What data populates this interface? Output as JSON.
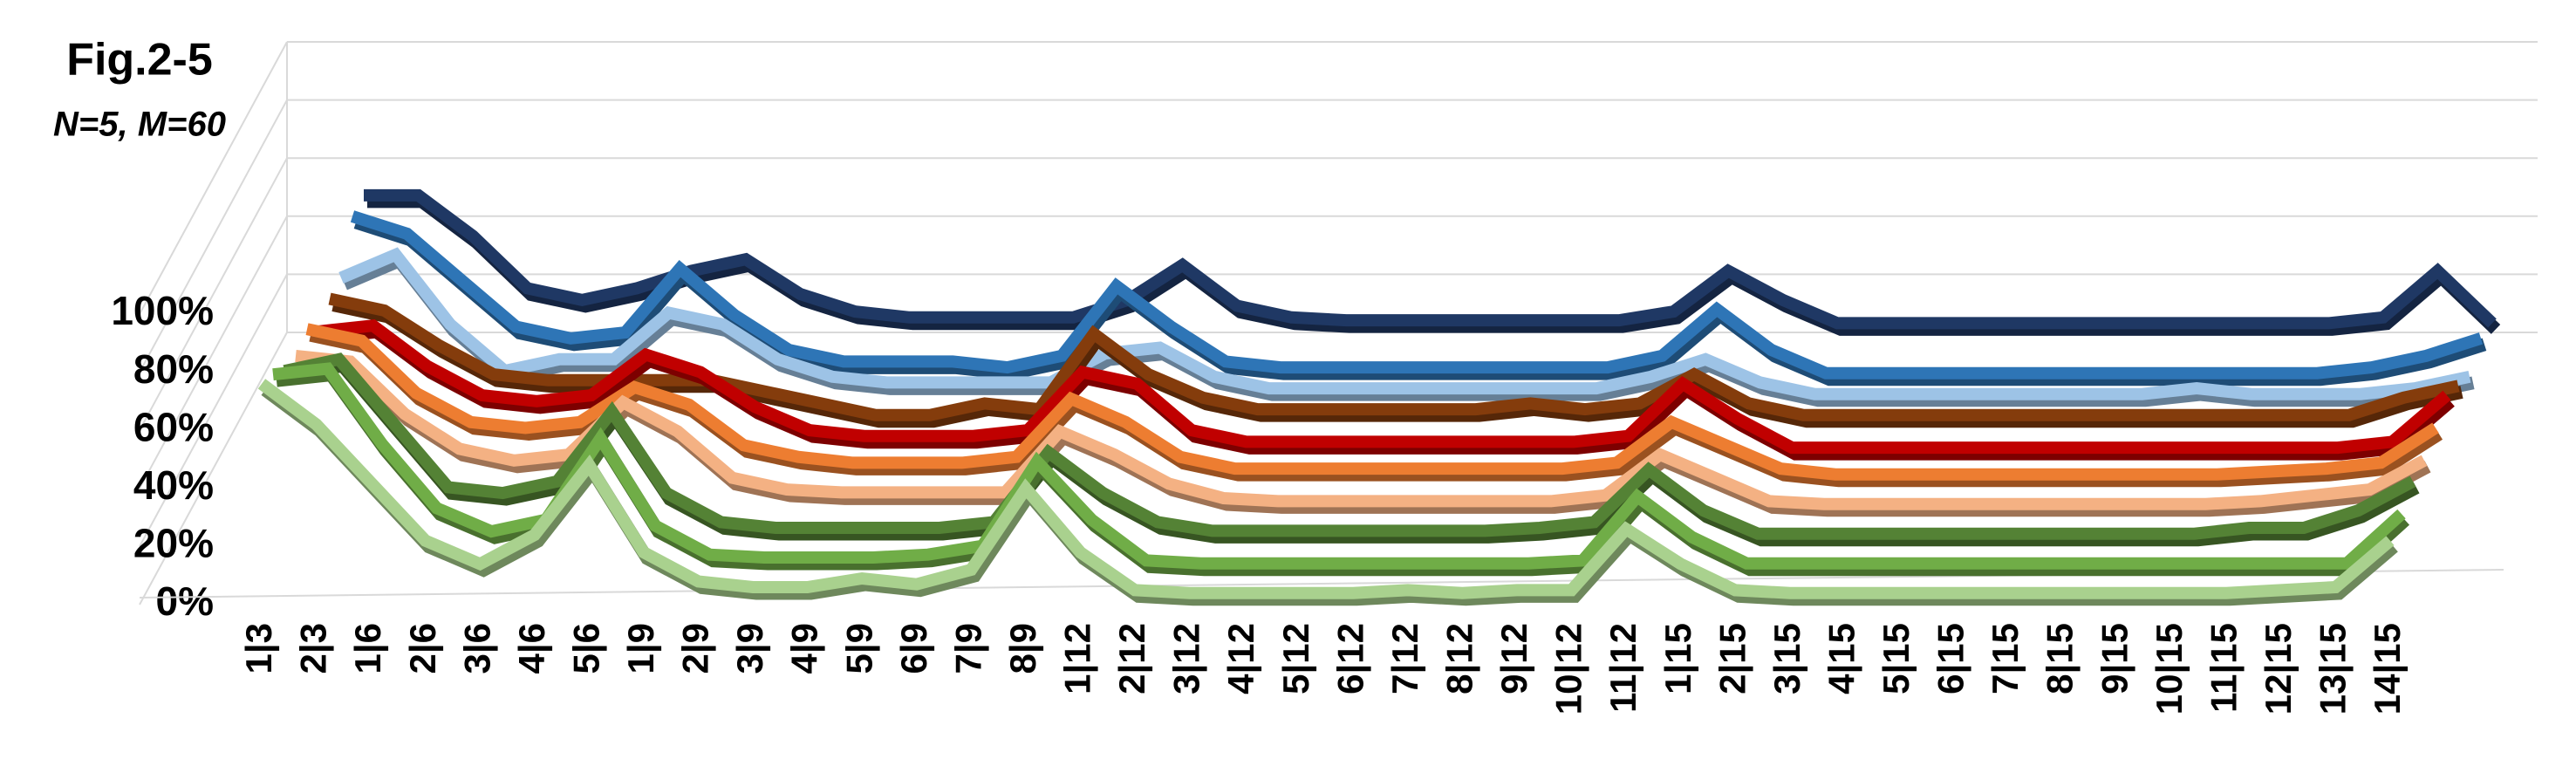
{
  "chart_data": {
    "type": "line",
    "title": "Fig.2-5",
    "subtitle": "N=5, M=60",
    "categories": [
      "1|3",
      "2|3",
      "1|6",
      "2|6",
      "3|6",
      "4|6",
      "5|6",
      "1|9",
      "2|9",
      "3|9",
      "4|9",
      "5|9",
      "6|9",
      "7|9",
      "8|9",
      "1|12",
      "2|12",
      "3|12",
      "4|12",
      "5|12",
      "6|12",
      "7|12",
      "8|12",
      "9|12",
      "10|12",
      "11|12",
      "1|15",
      "2|15",
      "3|15",
      "4|15",
      "5|15",
      "6|15",
      "7|15",
      "8|15",
      "9|15",
      "10|15",
      "11|15",
      "12|15",
      "13|15",
      "14|15"
    ],
    "series": [
      {
        "color": "#a9d18e",
        "values": [
          76,
          62,
          42,
          22,
          14,
          24,
          48,
          18,
          8,
          6,
          6,
          9,
          7,
          12,
          40,
          18,
          5,
          4,
          4,
          4,
          4,
          5,
          4,
          5,
          5,
          26,
          14,
          5,
          4,
          4,
          4,
          4,
          4,
          4,
          4,
          4,
          4,
          5,
          6,
          22
        ]
      },
      {
        "color": "#70ad47",
        "values": [
          72,
          74,
          48,
          26,
          18,
          22,
          50,
          20,
          10,
          9,
          9,
          9,
          10,
          13,
          42,
          22,
          8,
          7,
          7,
          7,
          7,
          7,
          7,
          7,
          8,
          30,
          16,
          7,
          7,
          7,
          7,
          7,
          7,
          7,
          7,
          7,
          7,
          7,
          7,
          24
        ]
      },
      {
        "color": "#548235",
        "values": [
          66,
          70,
          48,
          26,
          24,
          28,
          52,
          24,
          14,
          12,
          12,
          12,
          12,
          14,
          38,
          24,
          14,
          11,
          11,
          11,
          11,
          11,
          11,
          12,
          14,
          32,
          18,
          10,
          10,
          10,
          10,
          10,
          10,
          10,
          10,
          10,
          12,
          12,
          18,
          28
        ]
      },
      {
        "color": "#f4b183",
        "values": [
          64,
          62,
          44,
          32,
          28,
          30,
          48,
          38,
          22,
          18,
          17,
          17,
          17,
          17,
          38,
          30,
          20,
          15,
          14,
          14,
          14,
          14,
          14,
          14,
          16,
          30,
          22,
          14,
          13,
          13,
          13,
          13,
          13,
          13,
          13,
          13,
          14,
          16,
          18,
          28
        ]
      },
      {
        "color": "#ed7d31",
        "values": [
          66,
          62,
          44,
          34,
          32,
          34,
          46,
          40,
          26,
          22,
          20,
          20,
          20,
          22,
          42,
          34,
          22,
          18,
          18,
          18,
          18,
          18,
          18,
          18,
          20,
          34,
          26,
          18,
          16,
          16,
          16,
          16,
          16,
          16,
          16,
          16,
          17,
          18,
          20,
          32
        ]
      },
      {
        "color": "#c00000",
        "values": [
          58,
          60,
          46,
          36,
          34,
          36,
          50,
          44,
          32,
          24,
          22,
          22,
          22,
          24,
          44,
          40,
          24,
          20,
          20,
          20,
          20,
          20,
          20,
          20,
          22,
          40,
          28,
          18,
          18,
          18,
          18,
          18,
          18,
          18,
          18,
          18,
          18,
          18,
          20,
          36
        ]
      },
      {
        "color": "#843c0c",
        "values": [
          62,
          58,
          46,
          36,
          34,
          34,
          34,
          34,
          30,
          26,
          22,
          22,
          26,
          24,
          50,
          36,
          28,
          24,
          24,
          24,
          24,
          24,
          26,
          24,
          26,
          36,
          26,
          22,
          22,
          22,
          22,
          22,
          22,
          22,
          22,
          22,
          22,
          22,
          28,
          32
        ]
      },
      {
        "color": "#9dc3e6",
        "values": [
          62,
          70,
          46,
          30,
          34,
          34,
          50,
          46,
          34,
          28,
          26,
          26,
          26,
          26,
          36,
          38,
          28,
          24,
          24,
          24,
          24,
          24,
          24,
          24,
          28,
          34,
          26,
          22,
          22,
          22,
          22,
          22,
          22,
          22,
          24,
          22,
          22,
          22,
          24,
          28
        ]
      },
      {
        "color": "#2e75b6",
        "values": [
          76,
          70,
          54,
          38,
          34,
          36,
          58,
          42,
          30,
          26,
          26,
          26,
          24,
          28,
          52,
          38,
          26,
          24,
          24,
          24,
          24,
          24,
          24,
          24,
          28,
          44,
          30,
          22,
          22,
          22,
          22,
          22,
          22,
          22,
          22,
          22,
          22,
          24,
          28,
          34
        ]
      },
      {
        "color": "#1f3864",
        "values": [
          76,
          76,
          62,
          44,
          40,
          44,
          50,
          54,
          42,
          36,
          34,
          34,
          34,
          34,
          40,
          52,
          38,
          34,
          33,
          33,
          33,
          33,
          33,
          33,
          36,
          50,
          40,
          32,
          32,
          32,
          32,
          32,
          32,
          32,
          32,
          32,
          32,
          34,
          50,
          32
        ]
      }
    ],
    "ylim": [
      0,
      100
    ],
    "yticks": [
      {
        "value": 0,
        "label": "0%"
      },
      {
        "value": 20,
        "label": "20%"
      },
      {
        "value": 40,
        "label": "40%"
      },
      {
        "value": 60,
        "label": "60%"
      },
      {
        "value": 80,
        "label": "80%"
      },
      {
        "value": 100,
        "label": "100%"
      }
    ],
    "grid": true
  }
}
